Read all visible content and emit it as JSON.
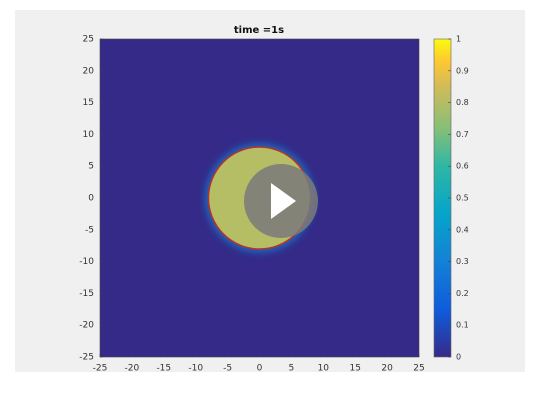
{
  "chart_data": {
    "type": "heatmap",
    "title": "time =1s",
    "xlim": [
      -25,
      25
    ],
    "xticks": [
      -25,
      -20,
      -15,
      -10,
      -5,
      0,
      5,
      10,
      15,
      20,
      25
    ],
    "ylim": [
      -25,
      25
    ],
    "yticks": [
      -25,
      -20,
      -15,
      -10,
      -5,
      0,
      5,
      10,
      15,
      20,
      25
    ],
    "clim": [
      0,
      1
    ],
    "cticks": [
      0,
      0.1,
      0.2,
      0.3,
      0.4,
      0.5,
      0.6,
      0.7,
      0.8,
      0.9,
      1
    ],
    "background_value": 0,
    "disc": {
      "x": 0,
      "y": 0,
      "radius": 8,
      "value": 0.8
    }
  }
}
